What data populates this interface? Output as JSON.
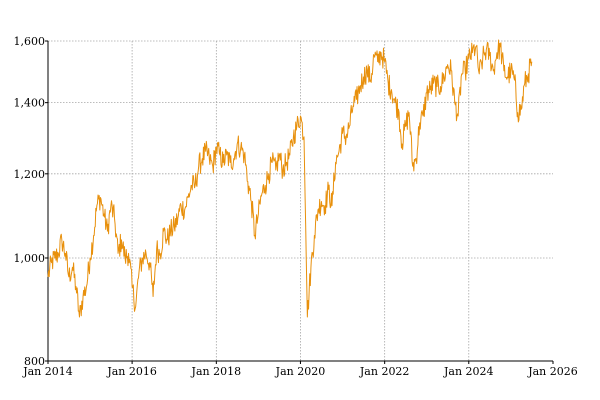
{
  "chart_data": {
    "type": "line",
    "title": "",
    "xlabel": "",
    "ylabel": "",
    "y_scale": "log",
    "ylim": [
      800,
      1600
    ],
    "xlim": [
      "2014-01-01",
      "2026-01-01"
    ],
    "x_ticks": [
      {
        "date": "2014-01-01",
        "label": "Jan 2014"
      },
      {
        "date": "2016-01-01",
        "label": "Jan 2016"
      },
      {
        "date": "2018-01-01",
        "label": "Jan 2018"
      },
      {
        "date": "2020-01-01",
        "label": "Jan 2020"
      },
      {
        "date": "2022-01-01",
        "label": "Jan 2022"
      },
      {
        "date": "2024-01-01",
        "label": "Jan 2024"
      },
      {
        "date": "2026-01-01",
        "label": "Jan 2026"
      }
    ],
    "y_ticks": [
      {
        "value": 800,
        "label": "800"
      },
      {
        "value": 1000,
        "label": "1,000"
      },
      {
        "value": 1200,
        "label": "1,200"
      },
      {
        "value": 1400,
        "label": "1,400"
      },
      {
        "value": 1600,
        "label": "1,600"
      }
    ],
    "grid": true,
    "legend": "none",
    "line_color": "#e8900c",
    "grid_color": "#a6a6a6",
    "series": [
      {
        "x": [
          "2014-01-01",
          "2014-02-01",
          "2014-03-01",
          "2014-04-01",
          "2014-05-01",
          "2014-06-01",
          "2014-07-01",
          "2014-08-01",
          "2014-09-01",
          "2014-10-01",
          "2014-11-01",
          "2014-12-01",
          "2015-01-01",
          "2015-02-01",
          "2015-03-01",
          "2015-04-01",
          "2015-05-01",
          "2015-06-01",
          "2015-07-01",
          "2015-08-01",
          "2015-09-01",
          "2015-10-01",
          "2015-11-01",
          "2015-12-01",
          "2016-01-01",
          "2016-02-01",
          "2016-03-01",
          "2016-04-01",
          "2016-05-01",
          "2016-06-01",
          "2016-07-01",
          "2016-08-01",
          "2016-09-01",
          "2016-10-01",
          "2016-11-01",
          "2016-12-01",
          "2017-01-01",
          "2017-02-01",
          "2017-03-01",
          "2017-04-01",
          "2017-05-01",
          "2017-06-01",
          "2017-07-01",
          "2017-08-01",
          "2017-09-01",
          "2017-10-01",
          "2017-11-01",
          "2017-12-01",
          "2018-01-01",
          "2018-02-01",
          "2018-03-01",
          "2018-04-01",
          "2018-05-01",
          "2018-06-01",
          "2018-07-01",
          "2018-08-01",
          "2018-09-01",
          "2018-10-01",
          "2018-11-01",
          "2018-12-01",
          "2019-01-01",
          "2019-02-01",
          "2019-03-01",
          "2019-04-01",
          "2019-05-01",
          "2019-06-01",
          "2019-07-01",
          "2019-08-01",
          "2019-09-01",
          "2019-10-01",
          "2019-11-01",
          "2019-12-01",
          "2020-01-01",
          "2020-02-01",
          "2020-03-01",
          "2020-04-01",
          "2020-05-01",
          "2020-06-01",
          "2020-07-01",
          "2020-08-01",
          "2020-09-01",
          "2020-10-01",
          "2020-11-01",
          "2020-12-01",
          "2021-01-01",
          "2021-02-01",
          "2021-03-01",
          "2021-04-01",
          "2021-05-01",
          "2021-06-01",
          "2021-07-01",
          "2021-08-01",
          "2021-09-01",
          "2021-10-01",
          "2021-11-01",
          "2021-12-01",
          "2022-01-01",
          "2022-02-01",
          "2022-03-01",
          "2022-04-01",
          "2022-05-01",
          "2022-06-01",
          "2022-07-01",
          "2022-08-01",
          "2022-09-01",
          "2022-10-01",
          "2022-11-01",
          "2022-12-01",
          "2023-01-01",
          "2023-02-01",
          "2023-03-01",
          "2023-04-01",
          "2023-05-01",
          "2023-06-01",
          "2023-07-01",
          "2023-08-01",
          "2023-09-01",
          "2023-10-01",
          "2023-11-01",
          "2023-12-01",
          "2024-01-01",
          "2024-02-01",
          "2024-03-01",
          "2024-04-01",
          "2024-05-01",
          "2024-06-01",
          "2024-07-01",
          "2024-08-01",
          "2024-09-01",
          "2024-10-01",
          "2024-11-01",
          "2024-12-01",
          "2025-01-01",
          "2025-02-01",
          "2025-03-01",
          "2025-04-01",
          "2025-05-01",
          "2025-06-01",
          "2025-07-01"
        ],
        "y": [
          960,
          990,
          1000,
          1010,
          1040,
          1010,
          960,
          980,
          940,
          880,
          920,
          940,
          1000,
          1050,
          1120,
          1140,
          1100,
          1060,
          1120,
          1090,
          1010,
          1040,
          1000,
          1010,
          940,
          900,
          970,
          1000,
          1010,
          990,
          920,
          1020,
          1010,
          1060,
          1040,
          1060,
          1070,
          1090,
          1120,
          1110,
          1140,
          1170,
          1170,
          1220,
          1240,
          1260,
          1240,
          1220,
          1270,
          1250,
          1230,
          1250,
          1230,
          1240,
          1280,
          1270,
          1250,
          1180,
          1130,
          1050,
          1100,
          1150,
          1170,
          1200,
          1230,
          1210,
          1250,
          1210,
          1230,
          1250,
          1300,
          1330,
          1360,
          1300,
          880,
          980,
          1050,
          1110,
          1130,
          1120,
          1160,
          1120,
          1230,
          1260,
          1310,
          1300,
          1330,
          1390,
          1410,
          1450,
          1480,
          1500,
          1470,
          1550,
          1530,
          1560,
          1530,
          1460,
          1440,
          1400,
          1380,
          1280,
          1330,
          1370,
          1220,
          1240,
          1340,
          1360,
          1430,
          1440,
          1460,
          1450,
          1450,
          1480,
          1520,
          1500,
          1400,
          1360,
          1490,
          1500,
          1540,
          1560,
          1580,
          1490,
          1540,
          1570,
          1550,
          1500,
          1560,
          1580,
          1500,
          1480,
          1500,
          1470,
          1370,
          1380,
          1460,
          1490,
          1530
        ]
      }
    ]
  }
}
